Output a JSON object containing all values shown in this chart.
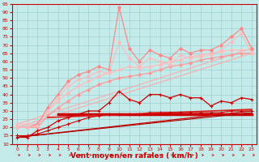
{
  "title": "",
  "xlabel": "Vent moyen/en rafales ( km/h )",
  "xlim": [
    -0.5,
    23.5
  ],
  "ylim": [
    10,
    95
  ],
  "yticks": [
    10,
    15,
    20,
    25,
    30,
    35,
    40,
    45,
    50,
    55,
    60,
    65,
    70,
    75,
    80,
    85,
    90,
    95
  ],
  "xticks": [
    0,
    1,
    2,
    3,
    4,
    5,
    6,
    7,
    8,
    9,
    10,
    11,
    12,
    13,
    14,
    15,
    16,
    17,
    18,
    19,
    20,
    21,
    22,
    23
  ],
  "background_color": "#c5eaea",
  "grid_color": "#9ecece",
  "lines": [
    {
      "label": "pink_diagonal1",
      "color": "#ffaaaa",
      "linewidth": 0.8,
      "marker": null,
      "markersize": 0,
      "x": [
        0,
        23
      ],
      "y": [
        20,
        65
      ]
    },
    {
      "label": "pink_diagonal2",
      "color": "#ffaaaa",
      "linewidth": 0.8,
      "marker": null,
      "markersize": 0,
      "x": [
        0,
        23
      ],
      "y": [
        22,
        68
      ]
    },
    {
      "label": "pink_smooth1",
      "color": "#ff9999",
      "linewidth": 0.9,
      "marker": "D",
      "markersize": 2.0,
      "x": [
        0,
        1,
        2,
        3,
        4,
        5,
        6,
        7,
        8,
        9,
        10,
        11,
        12,
        13,
        14,
        15,
        16,
        17,
        18,
        19,
        20,
        21,
        22,
        23
      ],
      "y": [
        20,
        20,
        20,
        27,
        32,
        36,
        40,
        43,
        46,
        48,
        50,
        51,
        52,
        53,
        55,
        57,
        58,
        59,
        61,
        62,
        63,
        64,
        65,
        65
      ]
    },
    {
      "label": "pink_smooth2",
      "color": "#ffbbbb",
      "linewidth": 0.9,
      "marker": "D",
      "markersize": 2.0,
      "x": [
        0,
        1,
        2,
        3,
        4,
        5,
        6,
        7,
        8,
        9,
        10,
        11,
        12,
        13,
        14,
        15,
        16,
        17,
        18,
        19,
        20,
        21,
        22,
        23
      ],
      "y": [
        22,
        22,
        22,
        30,
        36,
        41,
        45,
        48,
        51,
        53,
        55,
        57,
        56,
        57,
        58,
        60,
        61,
        63,
        64,
        65,
        66,
        67,
        67,
        67
      ]
    },
    {
      "label": "pink_jagged_high",
      "color": "#ff8888",
      "linewidth": 0.9,
      "marker": "D",
      "markersize": 2.0,
      "x": [
        0,
        1,
        2,
        3,
        4,
        5,
        6,
        7,
        8,
        9,
        10,
        11,
        12,
        13,
        14,
        15,
        16,
        17,
        18,
        19,
        20,
        21,
        22,
        23
      ],
      "y": [
        20,
        20,
        22,
        32,
        40,
        48,
        52,
        54,
        57,
        55,
        93,
        68,
        60,
        67,
        64,
        62,
        68,
        65,
        67,
        67,
        70,
        75,
        80,
        68
      ]
    },
    {
      "label": "pink_jagged_upper2",
      "color": "#ffbbbb",
      "linewidth": 0.8,
      "marker": "D",
      "markersize": 2.0,
      "x": [
        0,
        1,
        2,
        3,
        4,
        5,
        6,
        7,
        8,
        9,
        10,
        11,
        12,
        13,
        14,
        15,
        16,
        17,
        18,
        19,
        20,
        21,
        22,
        23
      ],
      "y": [
        20,
        20,
        21,
        30,
        38,
        45,
        49,
        51,
        54,
        53,
        72,
        62,
        57,
        62,
        60,
        58,
        64,
        62,
        63,
        64,
        67,
        72,
        77,
        65
      ]
    },
    {
      "label": "dark_diagonal_low",
      "color": "#cc0000",
      "linewidth": 0.9,
      "marker": null,
      "markersize": 0,
      "x": [
        0,
        23
      ],
      "y": [
        14,
        30
      ]
    },
    {
      "label": "dark_flat_heavy",
      "color": "#cc0000",
      "linewidth": 2.5,
      "marker": null,
      "markersize": 0,
      "x": [
        4,
        23
      ],
      "y": [
        28,
        28
      ]
    },
    {
      "label": "dark_medium_flat",
      "color": "#dd2222",
      "linewidth": 1.2,
      "marker": null,
      "markersize": 0,
      "x": [
        3,
        23
      ],
      "y": [
        26,
        31
      ]
    },
    {
      "label": "dark_jagged",
      "color": "#cc0000",
      "linewidth": 0.9,
      "marker": "+",
      "markersize": 3.5,
      "x": [
        0,
        1,
        2,
        3,
        4,
        5,
        6,
        7,
        8,
        9,
        10,
        11,
        12,
        13,
        14,
        15,
        16,
        17,
        18,
        19,
        20,
        21,
        22,
        23
      ],
      "y": [
        14,
        14,
        18,
        20,
        24,
        26,
        28,
        30,
        30,
        35,
        42,
        37,
        35,
        40,
        40,
        38,
        40,
        38,
        38,
        33,
        36,
        35,
        38,
        37
      ]
    },
    {
      "label": "dark_lower_diag",
      "color": "#aa0000",
      "linewidth": 0.8,
      "marker": null,
      "markersize": 0,
      "x": [
        0,
        23
      ],
      "y": [
        14,
        29
      ]
    },
    {
      "label": "dark_zigzag_lower",
      "color": "#cc0000",
      "linewidth": 0.8,
      "marker": "+",
      "markersize": 2.5,
      "x": [
        0,
        1,
        2,
        3,
        4,
        5,
        6,
        7,
        8,
        9,
        10,
        11,
        12,
        13,
        14,
        15,
        16,
        17,
        18,
        19,
        20,
        21,
        22,
        23
      ],
      "y": [
        15,
        15,
        16,
        18,
        20,
        22,
        24,
        26,
        27,
        28,
        28,
        28,
        28,
        29,
        29,
        29,
        29,
        29,
        29,
        29,
        29,
        30,
        30,
        30
      ]
    }
  ],
  "arrow_color": "#cc0000",
  "xlabel_color": "#cc0000",
  "tick_color": "#cc0000",
  "spine_color": "#cc0000"
}
